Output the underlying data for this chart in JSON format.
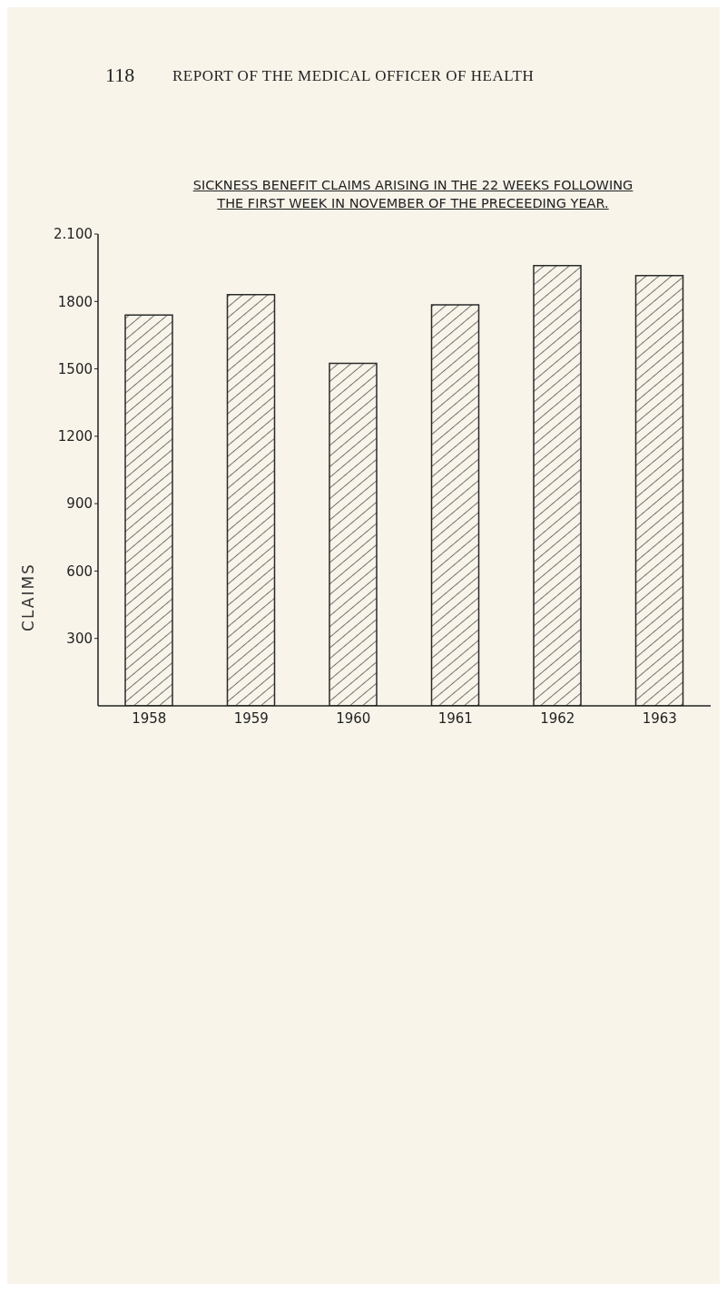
{
  "chart_data": {
    "type": "bar",
    "title": "SICKNESS BENEFIT CLAIMS ARISING IN THE 22 WEEKS FOLLOWING\nTHE FIRST WEEK IN NOVEMBER OF THE PRECEEDING YEAR.",
    "ylabel": "CLAIMS",
    "annotations": [
      "118",
      "REPORT OF THE MEDICAL OFFICER OF HEALTH"
    ],
    "categories": [
      "1958",
      "1959",
      "1960",
      "1961",
      "1962",
      "1963"
    ],
    "values": [
      1740,
      1830,
      1525,
      1785,
      1960,
      1915
    ],
    "color": "#2a2a2a",
    "ylim": [
      0,
      2100
    ],
    "yticks": [
      300,
      600,
      900,
      1200,
      1500,
      1800,
      {
        "value": 2100,
        "label": "2.100"
      }
    ],
    "grid": false
  }
}
